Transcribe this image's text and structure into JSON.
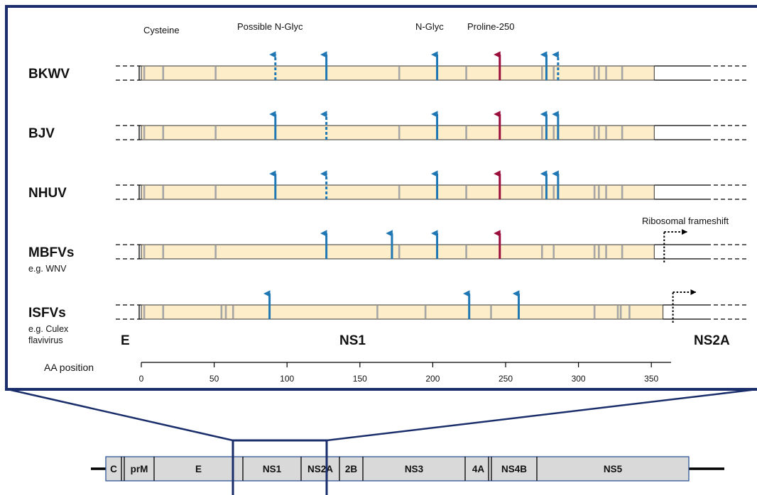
{
  "headers": {
    "cysteine": "Cysteine",
    "n_glyc_possible": "Possible N-Glyc",
    "n_glyc": "N-Glyc",
    "proline": "Proline-250",
    "frameshift": "Ribosomal frameshift"
  },
  "colors": {
    "n_glyc": "#1f77b4",
    "proline": "#9b0e3c",
    "cysteine": "#a6a6a6",
    "bar_fill": "#fdedc9",
    "frame": "#1a2e6b",
    "genome_fill": "#d9d9d9"
  },
  "rows": [
    {
      "label": "BKWV",
      "sublabel": [],
      "end_aa": 352,
      "cysteines": [
        2,
        15,
        51,
        177,
        223,
        275,
        283,
        311,
        314,
        319,
        330
      ],
      "arrows": [
        {
          "aa": 92,
          "type": "n_glyc_possible"
        },
        {
          "aa": 127,
          "type": "n_glyc"
        },
        {
          "aa": 203,
          "type": "n_glyc"
        },
        {
          "aa": 246,
          "type": "proline"
        },
        {
          "aa": 278,
          "type": "n_glyc"
        },
        {
          "aa": 286,
          "type": "n_glyc_possible"
        }
      ],
      "frameshift": false
    },
    {
      "label": "BJV",
      "sublabel": [],
      "end_aa": 352,
      "cysteines": [
        2,
        15,
        51,
        177,
        223,
        275,
        283,
        311,
        314,
        319,
        330
      ],
      "arrows": [
        {
          "aa": 92,
          "type": "n_glyc"
        },
        {
          "aa": 127,
          "type": "n_glyc_possible"
        },
        {
          "aa": 203,
          "type": "n_glyc"
        },
        {
          "aa": 246,
          "type": "proline"
        },
        {
          "aa": 278,
          "type": "n_glyc"
        },
        {
          "aa": 286,
          "type": "n_glyc"
        }
      ],
      "frameshift": false
    },
    {
      "label": "NHUV",
      "sublabel": [],
      "end_aa": 352,
      "cysteines": [
        2,
        15,
        51,
        177,
        223,
        275,
        283,
        311,
        314,
        319,
        330
      ],
      "arrows": [
        {
          "aa": 92,
          "type": "n_glyc"
        },
        {
          "aa": 127,
          "type": "n_glyc_possible"
        },
        {
          "aa": 203,
          "type": "n_glyc"
        },
        {
          "aa": 246,
          "type": "proline"
        },
        {
          "aa": 278,
          "type": "n_glyc"
        },
        {
          "aa": 286,
          "type": "n_glyc"
        }
      ],
      "frameshift": false
    },
    {
      "label": "MBFVs",
      "sublabel": [
        "e.g. WNV"
      ],
      "end_aa": 352,
      "cysteines": [
        2,
        15,
        51,
        177,
        223,
        275,
        283,
        311,
        314,
        319,
        330
      ],
      "arrows": [
        {
          "aa": 127,
          "type": "n_glyc"
        },
        {
          "aa": 172,
          "type": "n_glyc"
        },
        {
          "aa": 203,
          "type": "n_glyc"
        },
        {
          "aa": 246,
          "type": "proline"
        }
      ],
      "frameshift": true
    },
    {
      "label": "ISFVs",
      "sublabel": [
        "e.g. Culex",
        "flavivirus"
      ],
      "end_aa": 358,
      "cysteines": [
        2,
        15,
        55,
        58,
        63,
        162,
        195,
        240,
        311,
        327,
        329,
        335
      ],
      "arrows": [
        {
          "aa": 88,
          "type": "n_glyc"
        },
        {
          "aa": 225,
          "type": "n_glyc"
        },
        {
          "aa": 259,
          "type": "n_glyc"
        }
      ],
      "frameshift": true
    }
  ],
  "regions": {
    "e": "E",
    "ns1": "NS1",
    "ns2a": "NS2A"
  },
  "axis": {
    "label": "AA position",
    "ticks": [
      "0",
      "50",
      "100",
      "150",
      "200",
      "250",
      "300",
      "350"
    ]
  },
  "genome": {
    "segments": [
      "C",
      "prM",
      "E",
      "NS1",
      "NS2A",
      "2B",
      "NS3",
      "4A",
      "NS4B",
      "NS5"
    ]
  }
}
